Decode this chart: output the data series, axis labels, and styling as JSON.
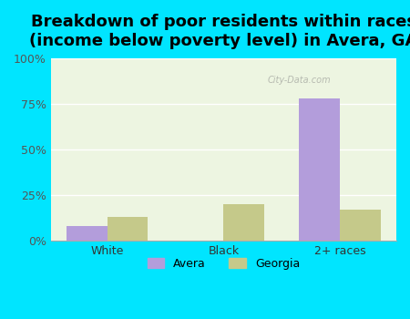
{
  "categories": [
    "White",
    "Black",
    "2+ races"
  ],
  "avera_values": [
    8,
    0,
    78
  ],
  "georgia_values": [
    13,
    20,
    17
  ],
  "avera_color": "#b39ddb",
  "georgia_color": "#c5c98a",
  "title": "Breakdown of poor residents within races\n(income below poverty level) in Avera, GA",
  "ylabel": "",
  "ylim": [
    0,
    100
  ],
  "yticks": [
    0,
    25,
    50,
    75,
    100
  ],
  "ytick_labels": [
    "0%",
    "25%",
    "50%",
    "75%",
    "100%"
  ],
  "background_color": "#00e5ff",
  "plot_bg_color_top": "#e8f5e9",
  "plot_bg_color_bottom": "#f5f5dc",
  "title_fontsize": 13,
  "legend_labels": [
    "Avera",
    "Georgia"
  ],
  "bar_width": 0.35,
  "watermark": "City-Data.com"
}
